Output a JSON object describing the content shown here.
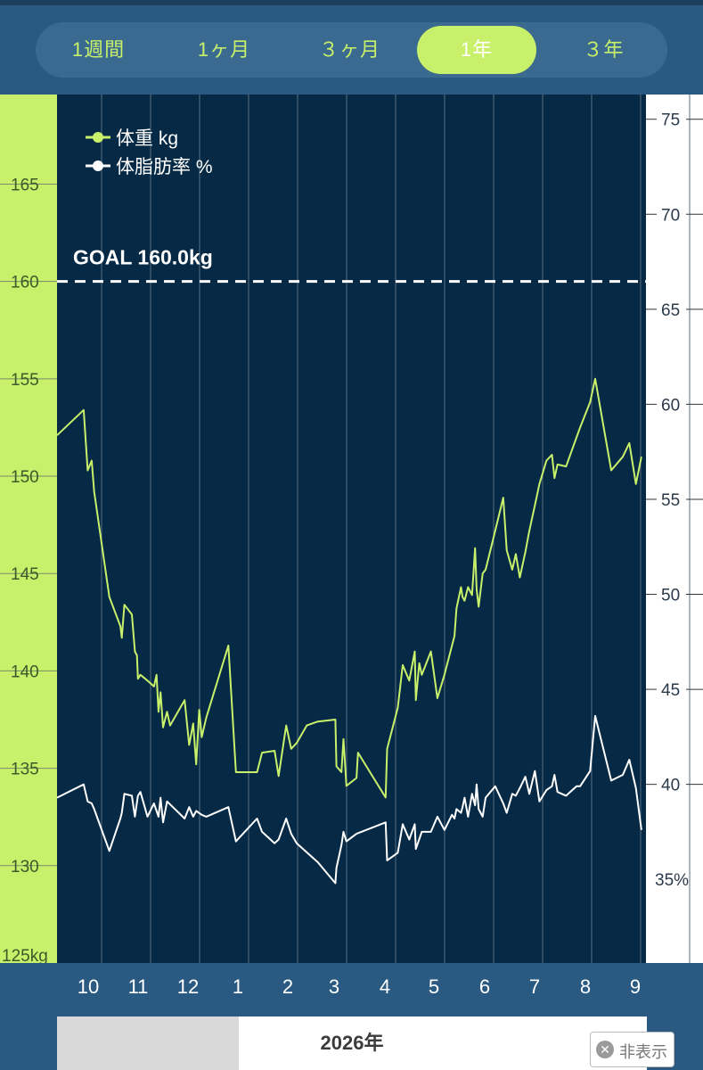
{
  "tabs": [
    {
      "label": "1週間",
      "active": false
    },
    {
      "label": "1ヶ月",
      "active": false
    },
    {
      "label": "３ヶ月",
      "active": false
    },
    {
      "label": "1年",
      "active": true
    },
    {
      "label": "３年",
      "active": false
    }
  ],
  "colors": {
    "weight": "#c8f06a",
    "bodyfat": "#ffffff",
    "plot_bg": "#062a45",
    "left_axis_bg": "#c8f06a",
    "header_bg": "#2a5a82"
  },
  "goal_label": "GOAL 160.0kg",
  "year_label": "2026年",
  "hide_button": {
    "label": "非表示",
    "icon": "close-circle-icon"
  },
  "chart_data": {
    "type": "line",
    "x_ticks": [
      "10",
      "11",
      "12",
      "1",
      "2",
      "3",
      "4",
      "5",
      "6",
      "7",
      "8",
      "9"
    ],
    "x_range": [
      9.45,
      9.62
    ],
    "left_axis": {
      "ticks": [
        "125kg",
        "130",
        "135",
        "140",
        "145",
        "150",
        "155",
        "160",
        "165"
      ],
      "range": [
        125,
        169.6
      ]
    },
    "right_axis": {
      "ticks": [
        "35%",
        "40",
        "45",
        "50",
        "55",
        "60",
        "65",
        "70",
        "75"
      ],
      "range": [
        30.6,
        76.3
      ]
    },
    "grid": true,
    "legend_position": "top-left",
    "goal": 160.0,
    "series": [
      {
        "name": "体重 kg",
        "axis": "left",
        "points": [
          [
            9.45,
            152.1
          ],
          [
            9.98,
            153.4
          ],
          [
            10.06,
            150.3
          ],
          [
            10.14,
            150.8
          ],
          [
            10.19,
            149.2
          ],
          [
            10.49,
            143.8
          ],
          [
            10.71,
            142.3
          ],
          [
            10.74,
            141.7
          ],
          [
            10.79,
            143.4
          ],
          [
            10.94,
            142.9
          ],
          [
            11.0,
            141.0
          ],
          [
            11.04,
            140.8
          ],
          [
            11.06,
            139.6
          ],
          [
            11.11,
            139.8
          ],
          [
            11.25,
            139.5
          ],
          [
            11.38,
            139.2
          ],
          [
            11.43,
            139.8
          ],
          [
            11.47,
            137.9
          ],
          [
            11.51,
            138.9
          ],
          [
            11.56,
            137.1
          ],
          [
            11.64,
            137.9
          ],
          [
            11.7,
            137.2
          ],
          [
            11.99,
            138.5
          ],
          [
            12.08,
            136.2
          ],
          [
            12.16,
            137.3
          ],
          [
            12.22,
            135.2
          ],
          [
            12.28,
            138.0
          ],
          [
            12.33,
            136.6
          ],
          [
            12.42,
            137.6
          ],
          [
            12.86,
            141.3
          ],
          [
            13.01,
            134.8
          ],
          [
            13.43,
            134.8
          ],
          [
            13.53,
            135.8
          ],
          [
            13.78,
            135.9
          ],
          [
            13.86,
            134.6
          ],
          [
            14.01,
            137.2
          ],
          [
            14.11,
            136.0
          ],
          [
            14.22,
            136.3
          ],
          [
            14.42,
            137.2
          ],
          [
            14.64,
            137.4
          ],
          [
            14.99,
            137.5
          ],
          [
            15.01,
            135.1
          ],
          [
            15.11,
            134.8
          ],
          [
            15.15,
            136.5
          ],
          [
            15.21,
            134.1
          ],
          [
            15.41,
            134.5
          ],
          [
            15.44,
            135.8
          ],
          [
            15.99,
            133.5
          ],
          [
            16.02,
            136.0
          ],
          [
            16.23,
            138.1
          ],
          [
            16.33,
            140.3
          ],
          [
            16.46,
            139.5
          ],
          [
            16.57,
            141.0
          ],
          [
            16.59,
            138.5
          ],
          [
            16.66,
            140.4
          ],
          [
            16.71,
            139.8
          ],
          [
            16.89,
            141.0
          ],
          [
            17.02,
            138.6
          ],
          [
            17.16,
            139.8
          ],
          [
            17.31,
            141.3
          ],
          [
            17.36,
            141.8
          ],
          [
            17.4,
            143.2
          ],
          [
            17.49,
            144.3
          ],
          [
            17.52,
            143.8
          ],
          [
            17.56,
            143.6
          ],
          [
            17.63,
            144.3
          ],
          [
            17.71,
            143.9
          ],
          [
            17.77,
            146.3
          ],
          [
            17.8,
            144.2
          ],
          [
            17.84,
            143.3
          ],
          [
            17.92,
            145.0
          ],
          [
            17.98,
            145.2
          ],
          [
            18.17,
            147.2
          ],
          [
            18.33,
            148.9
          ],
          [
            18.4,
            146.2
          ],
          [
            18.51,
            145.2
          ],
          [
            18.58,
            146.0
          ],
          [
            18.66,
            144.8
          ],
          [
            18.77,
            146.1
          ],
          [
            18.85,
            147.2
          ],
          [
            18.96,
            148.5
          ],
          [
            19.05,
            149.6
          ],
          [
            19.19,
            150.8
          ],
          [
            19.3,
            151.1
          ],
          [
            19.35,
            149.9
          ],
          [
            19.41,
            150.6
          ],
          [
            19.58,
            150.5
          ],
          [
            19.79,
            152.0
          ],
          [
            19.86,
            152.5
          ],
          [
            20.06,
            153.8
          ],
          [
            20.16,
            155.0
          ],
          [
            20.48,
            150.3
          ],
          [
            20.71,
            151.0
          ],
          [
            20.84,
            151.7
          ],
          [
            20.97,
            149.6
          ],
          [
            21.08,
            151.0
          ]
        ]
      },
      {
        "name": "体脂肪率 %",
        "axis": "right",
        "points": [
          [
            9.45,
            39.3
          ],
          [
            9.98,
            40.0
          ],
          [
            10.06,
            39.1
          ],
          [
            10.14,
            39.0
          ],
          [
            10.19,
            38.7
          ],
          [
            10.49,
            36.5
          ],
          [
            10.71,
            38.2
          ],
          [
            10.74,
            38.5
          ],
          [
            10.79,
            39.5
          ],
          [
            10.94,
            39.4
          ],
          [
            11.0,
            38.3
          ],
          [
            11.06,
            39.4
          ],
          [
            11.11,
            39.6
          ],
          [
            11.25,
            38.3
          ],
          [
            11.38,
            39.0
          ],
          [
            11.47,
            38.3
          ],
          [
            11.51,
            39.3
          ],
          [
            11.56,
            38.0
          ],
          [
            11.64,
            39.1
          ],
          [
            11.99,
            38.2
          ],
          [
            12.08,
            38.8
          ],
          [
            12.16,
            38.3
          ],
          [
            12.22,
            38.6
          ],
          [
            12.33,
            38.4
          ],
          [
            12.42,
            38.3
          ],
          [
            12.86,
            38.8
          ],
          [
            13.01,
            37.0
          ],
          [
            13.43,
            38.2
          ],
          [
            13.53,
            37.5
          ],
          [
            13.78,
            36.9
          ],
          [
            13.86,
            37.1
          ],
          [
            14.01,
            38.2
          ],
          [
            14.11,
            37.4
          ],
          [
            14.22,
            36.9
          ],
          [
            14.64,
            35.9
          ],
          [
            14.99,
            34.8
          ],
          [
            15.01,
            35.6
          ],
          [
            15.11,
            36.8
          ],
          [
            15.15,
            37.5
          ],
          [
            15.21,
            37.0
          ],
          [
            15.41,
            37.4
          ],
          [
            15.99,
            38.0
          ],
          [
            16.02,
            36.0
          ],
          [
            16.23,
            36.4
          ],
          [
            16.33,
            37.9
          ],
          [
            16.46,
            37.1
          ],
          [
            16.57,
            37.9
          ],
          [
            16.59,
            36.6
          ],
          [
            16.71,
            37.5
          ],
          [
            16.89,
            37.5
          ],
          [
            17.02,
            38.3
          ],
          [
            17.16,
            37.6
          ],
          [
            17.31,
            38.4
          ],
          [
            17.36,
            38.2
          ],
          [
            17.4,
            38.7
          ],
          [
            17.49,
            38.5
          ],
          [
            17.52,
            38.8
          ],
          [
            17.56,
            39.3
          ],
          [
            17.63,
            38.3
          ],
          [
            17.71,
            39.5
          ],
          [
            17.77,
            38.9
          ],
          [
            17.8,
            40.0
          ],
          [
            17.84,
            38.7
          ],
          [
            17.92,
            38.3
          ],
          [
            17.98,
            39.3
          ],
          [
            18.17,
            39.9
          ],
          [
            18.33,
            39.0
          ],
          [
            18.4,
            38.5
          ],
          [
            18.51,
            39.5
          ],
          [
            18.58,
            39.4
          ],
          [
            18.66,
            39.8
          ],
          [
            18.77,
            40.4
          ],
          [
            18.85,
            39.5
          ],
          [
            18.96,
            40.7
          ],
          [
            19.05,
            39.1
          ],
          [
            19.19,
            39.7
          ],
          [
            19.3,
            39.9
          ],
          [
            19.35,
            40.5
          ],
          [
            19.41,
            39.6
          ],
          [
            19.58,
            39.4
          ],
          [
            19.79,
            39.9
          ],
          [
            19.86,
            39.9
          ],
          [
            20.06,
            40.7
          ],
          [
            20.16,
            43.6
          ],
          [
            20.48,
            40.2
          ],
          [
            20.71,
            40.5
          ],
          [
            20.84,
            41.3
          ],
          [
            20.97,
            39.8
          ],
          [
            21.08,
            37.6
          ]
        ]
      }
    ]
  }
}
